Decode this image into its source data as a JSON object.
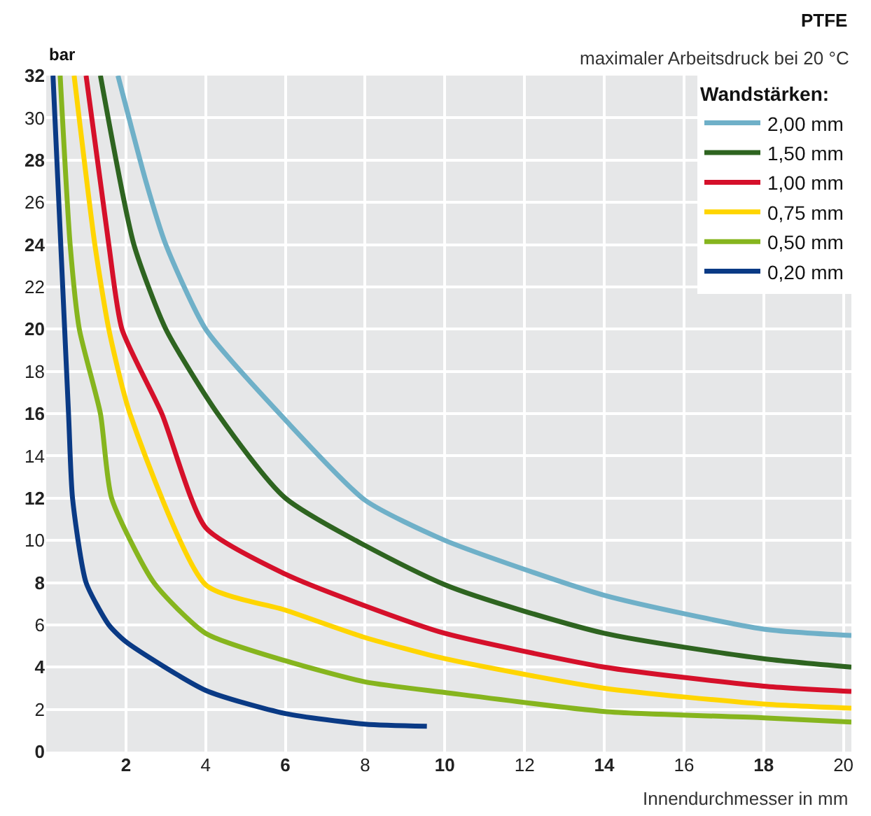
{
  "chart_data": {
    "type": "line",
    "title": "PTFE",
    "subtitle": "maximaler Arbeitsdruck bei 20 °C",
    "xlabel": "Innendurchmesser in mm",
    "ylabel": "bar",
    "legend_title": "Wandstärken:",
    "xlim": [
      0,
      20.2
    ],
    "ylim": [
      0,
      32
    ],
    "xticks": [
      2,
      4,
      6,
      8,
      10,
      12,
      14,
      16,
      18,
      20
    ],
    "yticks": [
      0,
      2,
      4,
      6,
      8,
      10,
      12,
      14,
      16,
      18,
      20,
      22,
      24,
      26,
      28,
      30,
      32
    ],
    "grid": true,
    "legend": "top right",
    "marker": "none",
    "line_style": "solid",
    "series": [
      {
        "name": "2,00 mm",
        "color": "#6fb0c8",
        "x": [
          1.8,
          2.5,
          3.0,
          4,
          6,
          8,
          10,
          14,
          18,
          20.2
        ],
        "values": [
          32,
          27,
          24,
          20,
          15.7,
          11.9,
          10.0,
          7.4,
          5.8,
          5.5
        ]
      },
      {
        "name": "1,50 mm",
        "color": "#2e6420",
        "x": [
          1.36,
          2.2,
          3.0,
          4.3,
          6,
          10,
          14,
          18,
          20.2
        ],
        "values": [
          32,
          24,
          20,
          16,
          12.0,
          7.9,
          5.6,
          4.4,
          4.0
        ]
      },
      {
        "name": "1,00 mm",
        "color": "#d5102a",
        "x": [
          1.0,
          1.57,
          1.9,
          2.9,
          4,
          6,
          8,
          10,
          14,
          18,
          20.2
        ],
        "values": [
          32,
          24,
          20,
          16,
          10.6,
          8.4,
          6.9,
          5.6,
          4.0,
          3.1,
          2.85
        ]
      },
      {
        "name": "0,75 mm",
        "color": "#ffd500",
        "x": [
          0.7,
          1.22,
          1.57,
          2.1,
          4,
          6,
          8,
          10,
          14,
          18,
          20.2
        ],
        "values": [
          32,
          24,
          20,
          16,
          7.9,
          6.7,
          5.4,
          4.4,
          3.0,
          2.25,
          2.05
        ]
      },
      {
        "name": "0,50 mm",
        "color": "#86b51e",
        "x": [
          0.35,
          0.6,
          0.83,
          1.36,
          1.64,
          2.7,
          4,
          6,
          8,
          10,
          14,
          18,
          20.2
        ],
        "values": [
          32,
          24,
          20,
          16,
          12,
          8,
          5.6,
          4.3,
          3.3,
          2.8,
          1.9,
          1.6,
          1.4
        ]
      },
      {
        "name": "0,20 mm",
        "color": "#0a3a85",
        "x": [
          0.17,
          0.56,
          0.66,
          1.0,
          1.57,
          2,
          4,
          6,
          8,
          9.55
        ],
        "values": [
          32,
          16,
          12,
          8,
          6,
          5.2,
          2.9,
          1.8,
          1.3,
          1.2
        ]
      }
    ]
  }
}
